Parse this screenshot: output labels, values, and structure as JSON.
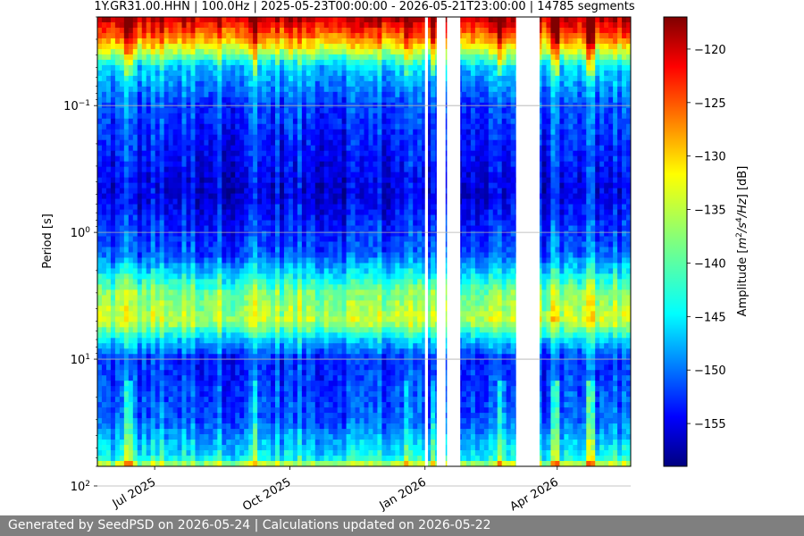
{
  "chart_data": {
    "type": "heatmap",
    "title": "1Y.GR31.00.HHN | 100.0Hz | 2025-05-23T00:00:00 - 2026-05-21T23:00:00 | 14785 segments",
    "ylabel": "Period [s]",
    "y_scale": "log",
    "y_inverted": true,
    "ylim": [
      0.02,
      70
    ],
    "xlim": [
      "2025-05-23",
      "2026-05-21"
    ],
    "x_ticks": [
      {
        "date": "2025-07-01",
        "label": "Jul 2025"
      },
      {
        "date": "2025-10-01",
        "label": "Oct 2025"
      },
      {
        "date": "2026-01-01",
        "label": "Jan 2026"
      },
      {
        "date": "2026-04-01",
        "label": "Apr 2026"
      }
    ],
    "y_ticks": [
      {
        "value": 0.1,
        "base": "10",
        "exp": "−1"
      },
      {
        "value": 1,
        "base": "10",
        "exp": "0"
      },
      {
        "value": 10,
        "base": "10",
        "exp": "1"
      },
      {
        "value": 100,
        "base": "10",
        "exp": "2"
      }
    ],
    "grid": true,
    "colormap": "jet",
    "colorbar": {
      "label": "Amplitude [m²/s⁴/Hz] [dB]",
      "label_prefix": "Amplitude [",
      "label_math": "m",
      "label_sup1": "2",
      "label_mid": "/s",
      "label_sup2": "4",
      "label_end": "/Hz",
      "label_suffix": "] [dB]",
      "vmin": -159,
      "vmax": -117,
      "ticks": [
        -120,
        -125,
        -130,
        -135,
        -140,
        -145,
        -150,
        -155
      ]
    },
    "data_gaps": [
      [
        "2026-01-01",
        "2026-01-03"
      ],
      [
        "2026-01-09",
        "2026-01-15"
      ],
      [
        "2026-01-16",
        "2026-01-25"
      ],
      [
        "2026-03-04",
        "2026-03-20"
      ]
    ],
    "spectral_profile": [
      {
        "period": 0.02,
        "db": -119
      },
      {
        "period": 0.03,
        "db": -128
      },
      {
        "period": 0.05,
        "db": -145
      },
      {
        "period": 0.1,
        "db": -151
      },
      {
        "period": 0.5,
        "db": -155
      },
      {
        "period": 1.5,
        "db": -150
      },
      {
        "period": 3,
        "db": -138
      },
      {
        "period": 5,
        "db": -135
      },
      {
        "period": 7,
        "db": -145
      },
      {
        "period": 10,
        "db": -152
      },
      {
        "period": 30,
        "db": -150
      },
      {
        "period": 60,
        "db": -143
      },
      {
        "period": 70,
        "db": -133
      }
    ],
    "annotations": []
  },
  "footer": {
    "text": "Generated by SeedPSD on 2026-05-24 | Calculations updated on 2026-05-22"
  }
}
